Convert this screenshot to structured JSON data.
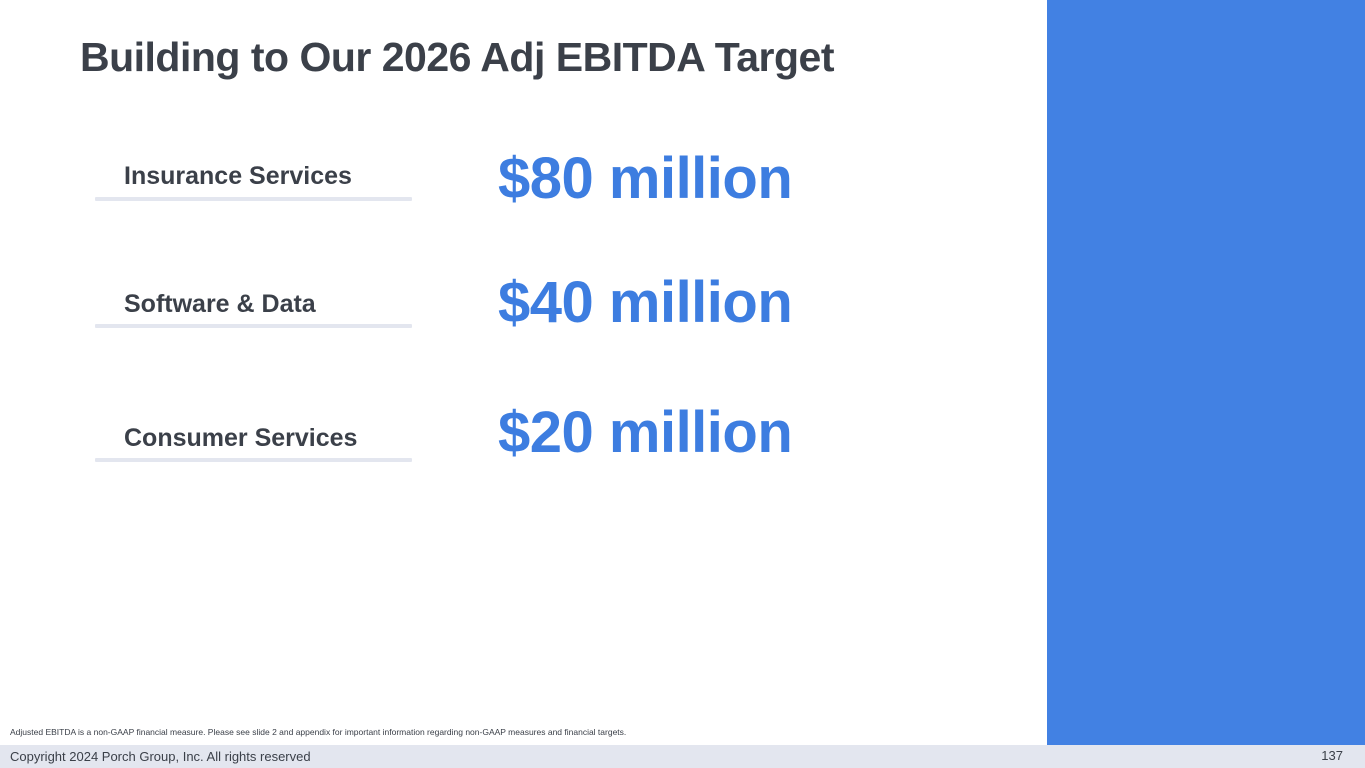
{
  "slide": {
    "title": "Building to Our 2026 Adj EBITDA Target",
    "rows": [
      {
        "label": "Insurance Services",
        "value": "$80 million"
      },
      {
        "label": "Software & Data",
        "value": "$40 million"
      },
      {
        "label": "Consumer Services",
        "value": "$20 million"
      }
    ],
    "footnote": "Adjusted EBITDA is a non-GAAP financial measure. Please see slide 2 and appendix for important information regarding non-GAAP measures and financial targets.",
    "footer": {
      "copyright": "Copyright 2024 Porch Group, Inc. All rights reserved",
      "page_number": "137"
    }
  },
  "colors": {
    "title_text": "#3b4049",
    "label_text": "#3b4049",
    "value_text": "#3d7de0",
    "accent_panel": "#4281e3",
    "underline": "#e3e6ef",
    "footer_bg": "#e3e6ef",
    "footer_text": "#3b4049",
    "footnote_text": "#3b4049"
  }
}
